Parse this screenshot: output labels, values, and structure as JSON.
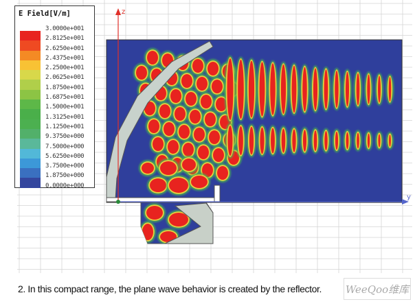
{
  "legend": {
    "title": "E Field[V/m]",
    "ticks": [
      "3.0000e+001",
      "2.8125e+001",
      "2.6250e+001",
      "2.4375e+001",
      "2.2500e+001",
      "2.0625e+001",
      "1.8750e+001",
      "1.6875e+001",
      "1.5000e+001",
      "1.3125e+001",
      "1.1250e+001",
      "9.3750e+000",
      "7.5000e+000",
      "5.6250e+000",
      "3.7500e+000",
      "1.8750e+000",
      "0.0000e+000"
    ],
    "colors": [
      "#e8231f",
      "#ef4a22",
      "#f48a24",
      "#f8c234",
      "#d8d84a",
      "#b0cf4a",
      "#8cc444",
      "#5db848",
      "#4aaf4a",
      "#4cb050",
      "#52b06a",
      "#5ab89a",
      "#52b8d8",
      "#3c98d8",
      "#3a70c0",
      "#34469e"
    ]
  },
  "axes": {
    "z_label": "z",
    "y_label": "y",
    "axis_color": "#e0302a"
  },
  "caption": "2. In this compact range, the plane wave behavior is created by the reflector.",
  "watermark": "WeeQoo维库"
}
